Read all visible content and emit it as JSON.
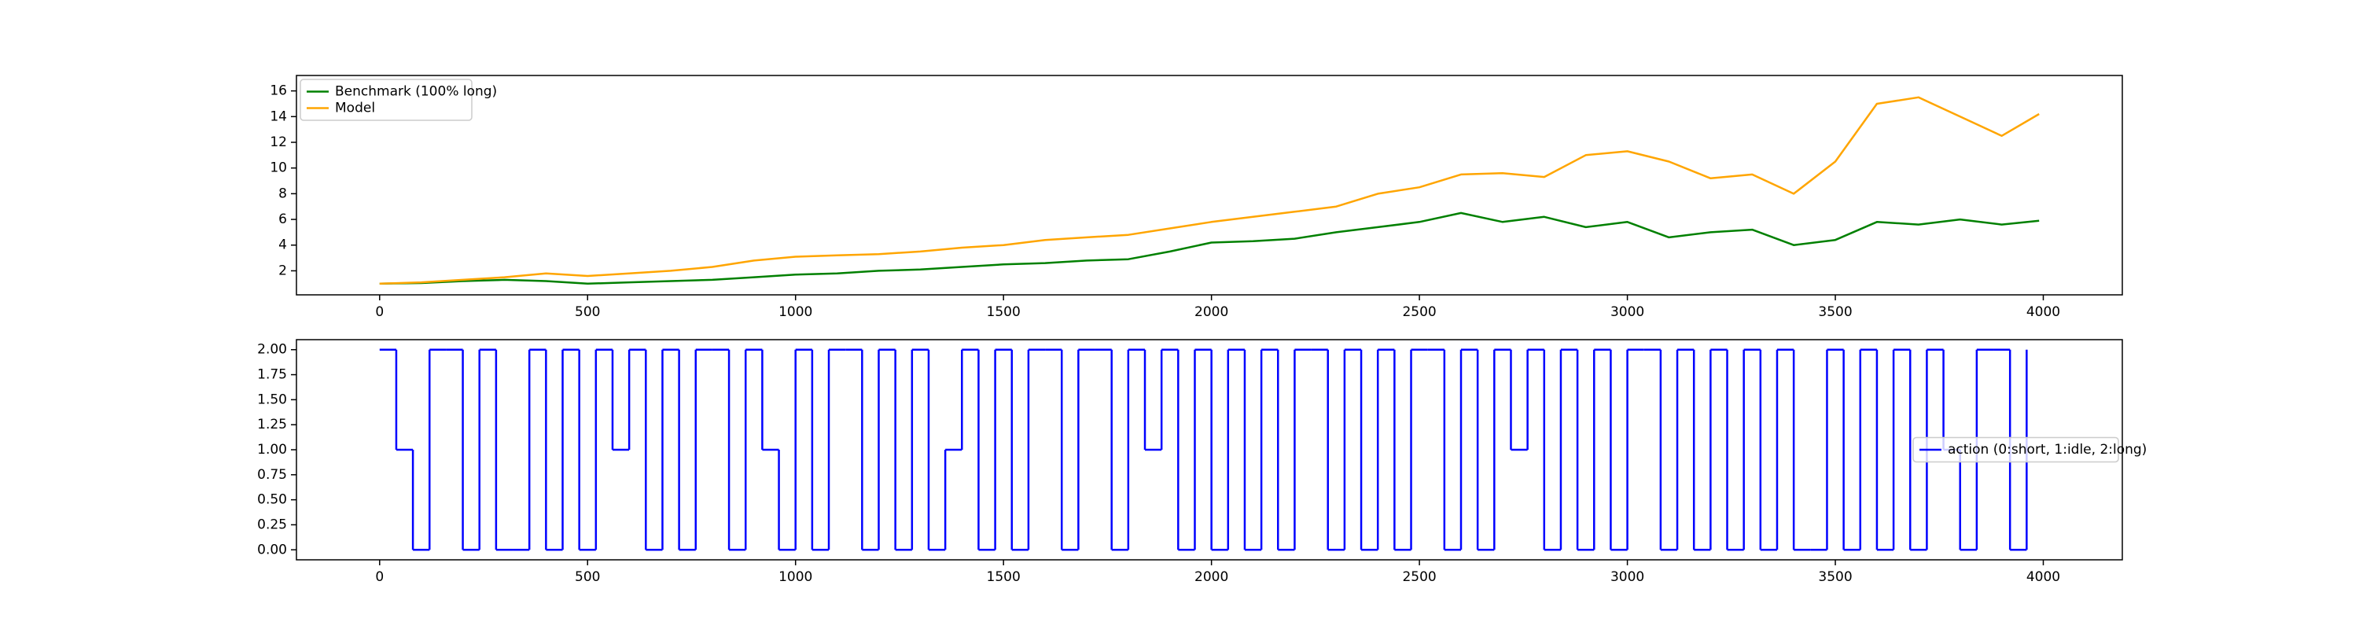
{
  "chart_data": [
    {
      "type": "line",
      "x": [
        0,
        100,
        200,
        300,
        400,
        500,
        600,
        700,
        800,
        900,
        1000,
        1100,
        1200,
        1300,
        1400,
        1500,
        1600,
        1700,
        1800,
        1900,
        2000,
        2100,
        2200,
        2300,
        2400,
        2500,
        2600,
        2700,
        2800,
        2900,
        3000,
        3100,
        3200,
        3300,
        3400,
        3500,
        3600,
        3700,
        3800,
        3900,
        3990
      ],
      "series": [
        {
          "name": "Benchmark (100% long)",
          "color": "#008000",
          "values": [
            1.0,
            1.05,
            1.2,
            1.3,
            1.2,
            1.0,
            1.1,
            1.2,
            1.3,
            1.5,
            1.7,
            1.8,
            2.0,
            2.1,
            2.3,
            2.5,
            2.6,
            2.8,
            2.9,
            3.5,
            4.2,
            4.3,
            4.5,
            5.0,
            5.4,
            5.8,
            6.5,
            5.8,
            6.2,
            5.4,
            5.8,
            4.6,
            5.0,
            5.2,
            4.0,
            4.4,
            5.8,
            5.6,
            6.0,
            5.6,
            5.9
          ]
        },
        {
          "name": "Model",
          "color": "#ffa500",
          "values": [
            1.0,
            1.1,
            1.3,
            1.5,
            1.8,
            1.6,
            1.8,
            2.0,
            2.3,
            2.8,
            3.1,
            3.2,
            3.3,
            3.5,
            3.8,
            4.0,
            4.4,
            4.6,
            4.8,
            5.3,
            5.8,
            6.2,
            6.6,
            7.0,
            8.0,
            8.5,
            9.5,
            9.6,
            9.3,
            11.0,
            11.3,
            10.5,
            9.2,
            9.5,
            8.0,
            10.5,
            15.0,
            15.5,
            14.0,
            12.5,
            14.2
          ]
        }
      ],
      "xlim": [
        -200,
        4190
      ],
      "ylim": [
        0.13,
        17.2
      ],
      "xticks": [
        0,
        500,
        1000,
        1500,
        2000,
        2500,
        3000,
        3500,
        4000
      ],
      "yticks": [
        2,
        4,
        6,
        8,
        10,
        12,
        14,
        16
      ],
      "legend": "upper left"
    },
    {
      "type": "line",
      "drawstyle": "steps-post",
      "x": [
        0,
        40,
        80,
        120,
        160,
        200,
        240,
        280,
        320,
        360,
        400,
        440,
        480,
        520,
        560,
        600,
        640,
        680,
        720,
        760,
        800,
        840,
        880,
        920,
        960,
        1000,
        1040,
        1080,
        1120,
        1160,
        1200,
        1240,
        1280,
        1320,
        1360,
        1400,
        1440,
        1480,
        1520,
        1560,
        1600,
        1640,
        1680,
        1720,
        1760,
        1800,
        1840,
        1880,
        1920,
        1960,
        2000,
        2040,
        2080,
        2120,
        2160,
        2200,
        2240,
        2280,
        2320,
        2360,
        2400,
        2440,
        2480,
        2520,
        2560,
        2600,
        2640,
        2680,
        2720,
        2760,
        2800,
        2840,
        2880,
        2920,
        2960,
        3000,
        3040,
        3080,
        3120,
        3160,
        3200,
        3240,
        3280,
        3320,
        3360,
        3400,
        3440,
        3480,
        3520,
        3560,
        3600,
        3640,
        3680,
        3720,
        3760,
        3800,
        3840,
        3880,
        3920,
        3960
      ],
      "series": [
        {
          "name": "action (0:short, 1:idle, 2:long)",
          "color": "#0000ff",
          "values": [
            2,
            1,
            0,
            2,
            2,
            0,
            2,
            0,
            0,
            2,
            0,
            2,
            0,
            2,
            1,
            2,
            0,
            2,
            0,
            2,
            2,
            0,
            2,
            1,
            0,
            2,
            0,
            2,
            2,
            0,
            2,
            0,
            2,
            0,
            1,
            2,
            0,
            2,
            0,
            2,
            2,
            0,
            2,
            2,
            0,
            2,
            1,
            2,
            0,
            2,
            0,
            2,
            0,
            2,
            0,
            2,
            2,
            0,
            2,
            0,
            2,
            0,
            2,
            2,
            0,
            2,
            0,
            2,
            1,
            2,
            0,
            2,
            0,
            2,
            0,
            2,
            2,
            0,
            2,
            0,
            2,
            0,
            2,
            0,
            2,
            0,
            0,
            2,
            0,
            2,
            0,
            2,
            0,
            2,
            1,
            0,
            2,
            2,
            0,
            2
          ]
        }
      ],
      "xlim": [
        -200,
        4190
      ],
      "ylim": [
        -0.1,
        2.1
      ],
      "xticks": [
        0,
        500,
        1000,
        1500,
        2000,
        2500,
        3000,
        3500,
        4000
      ],
      "yticks": [
        {
          "value": 0,
          "label": "0.00"
        },
        {
          "value": 0.25,
          "label": "0.25"
        },
        {
          "value": 0.5,
          "label": "0.50"
        },
        {
          "value": 0.75,
          "label": "0.75"
        },
        {
          "value": 1,
          "label": "1.00"
        },
        {
          "value": 1.25,
          "label": "1.25"
        },
        {
          "value": 1.5,
          "label": "1.50"
        },
        {
          "value": 1.75,
          "label": "1.75"
        },
        {
          "value": 2,
          "label": "2.00"
        }
      ],
      "legend": "center right"
    }
  ]
}
